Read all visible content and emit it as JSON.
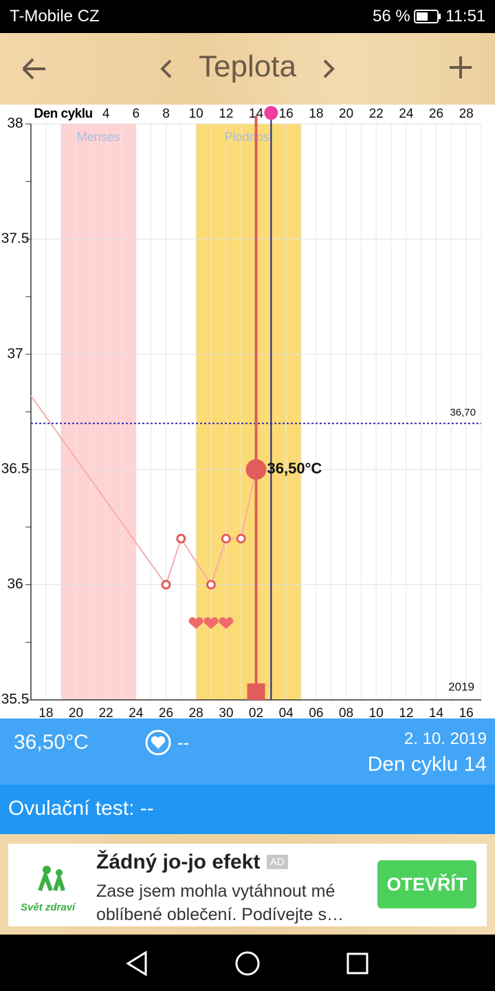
{
  "status_bar": {
    "carrier": "T-Mobile CZ",
    "battery": "56 %",
    "time": "11:51"
  },
  "header": {
    "title": "Teplota"
  },
  "chart_data": {
    "type": "line",
    "x2_label": "Den cyklu",
    "xlim": [
      -1,
      29
    ],
    "ylim": [
      35.5,
      38
    ],
    "yticks": [
      {
        "value": 35.5,
        "label": "35.5"
      },
      36,
      {
        "value": 36.5,
        "label": "36.5"
      },
      37,
      {
        "value": 37.5,
        "label": "37.5"
      },
      38
    ],
    "xticks": [
      {
        "value": 0,
        "label": "18"
      },
      {
        "value": 2,
        "label": "20"
      },
      {
        "value": 4,
        "label": "22"
      },
      {
        "value": 6,
        "label": "24"
      },
      {
        "value": 8,
        "label": "26"
      },
      {
        "value": 10,
        "label": "28"
      },
      {
        "value": 12,
        "label": "30"
      },
      {
        "value": 14,
        "label": "02"
      },
      {
        "value": 16,
        "label": "04"
      },
      {
        "value": 18,
        "label": "06"
      },
      {
        "value": 20,
        "label": "08"
      },
      {
        "value": 22,
        "label": "10"
      },
      {
        "value": 24,
        "label": "12"
      },
      {
        "value": 26,
        "label": "14"
      },
      {
        "value": 28,
        "label": "16"
      }
    ],
    "x2ticks": [
      4,
      6,
      8,
      10,
      12,
      14,
      16,
      18,
      20,
      22,
      24,
      26,
      28
    ],
    "year_label": "2019",
    "grid": true,
    "bands": [
      {
        "name": "Menses",
        "start": 1,
        "end": 6,
        "color": "#ffd3d3",
        "label_color": "#a9bde0"
      },
      {
        "name": "Plodnost",
        "start": 10,
        "end": 17,
        "color": "#fbdb75",
        "label_color": "#a9bde0"
      }
    ],
    "vertical_lines": [
      {
        "x": 14,
        "color": "#e25c5c"
      },
      {
        "x": 15,
        "color": "#1a237e"
      }
    ],
    "reference_line": {
      "value": 36.7,
      "label": "36,70",
      "color": "#2a2ab8"
    },
    "hearts": [
      10,
      11,
      12
    ],
    "series": [
      {
        "color": "#f5adad",
        "marker_color": "#e25c5c",
        "x": [
          -1,
          8,
          9,
          11,
          12,
          13,
          14
        ],
        "values": [
          36.82,
          36,
          36.2,
          36,
          36.2,
          36.2,
          36.5
        ],
        "value_labels": [
          null,
          null,
          null,
          null,
          null,
          null,
          "36,50°C"
        ]
      }
    ]
  },
  "info": {
    "temperature": "36,50°C",
    "intercourse": "--",
    "date": "2. 10. 2019",
    "cycle_day": "Den cyklu 14"
  },
  "ovulation": {
    "text": "Ovulační test: --"
  },
  "ad": {
    "logo": "Svět zdraví",
    "title": "Žádný jo-jo efekt",
    "badge": "AD",
    "text": "Zase jsem mohla vytáhnout mé oblíbené oblečení. Podívejte s…",
    "button": "OTEVŘÍT"
  }
}
